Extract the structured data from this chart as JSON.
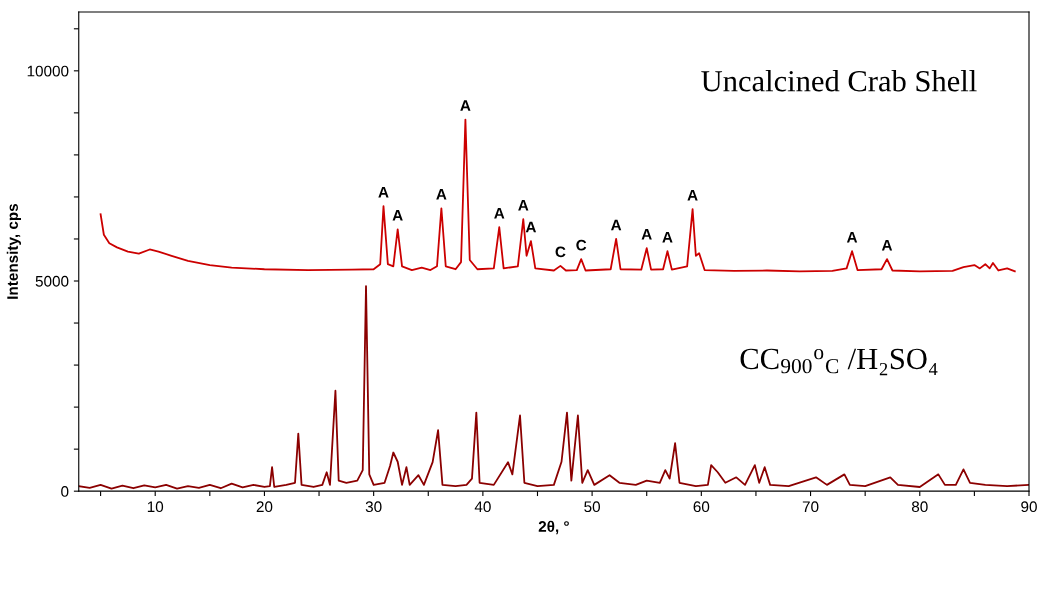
{
  "chart_data": {
    "type": "line",
    "xlabel": "2θ, °",
    "ylabel": "Intensity, cps",
    "xlim": [
      3,
      90
    ],
    "ylim": [
      0,
      11400
    ],
    "xticks": [
      {
        "value": 5,
        "label": null
      },
      10,
      {
        "value": 15,
        "label": null
      },
      20,
      {
        "value": 25,
        "label": null
      },
      30,
      {
        "value": 35,
        "label": null
      },
      40,
      {
        "value": 45,
        "label": null
      },
      50,
      {
        "value": 55,
        "label": null
      },
      60,
      {
        "value": 65,
        "label": null
      },
      70,
      {
        "value": 75,
        "label": null
      },
      80,
      {
        "value": 85,
        "label": null
      },
      90
    ],
    "yticks": [
      0,
      {
        "value": 1000,
        "label": null
      },
      {
        "value": 2000,
        "label": null
      },
      {
        "value": 3000,
        "label": null
      },
      {
        "value": 4000,
        "label": null
      },
      5000,
      {
        "value": 6000,
        "label": null
      },
      {
        "value": 7000,
        "label": null
      },
      {
        "value": 8000,
        "label": null
      },
      {
        "value": 9000,
        "label": null
      },
      10000,
      {
        "value": 11000,
        "label": null
      }
    ],
    "grid": false,
    "marker": "none",
    "line_style": "solid",
    "series": [
      {
        "color": "#cc0000",
        "x": [
          5.0,
          5.3,
          5.8,
          6.5,
          7.5,
          8.5,
          9.5,
          10.3,
          11.5,
          13,
          15,
          17,
          20,
          24,
          28,
          30.0,
          30.6,
          30.9,
          31.3,
          31.8,
          32.2,
          32.6,
          33.5,
          34.4,
          35.2,
          35.8,
          36.2,
          36.6,
          37.5,
          38.0,
          38.4,
          38.8,
          39.5,
          41.0,
          41.5,
          41.9,
          43.2,
          43.7,
          44.0,
          44.4,
          44.8,
          46.5,
          47.1,
          47.6,
          48.6,
          49.0,
          49.4,
          51.7,
          52.2,
          52.6,
          54.5,
          55.0,
          55.4,
          56.5,
          56.9,
          57.3,
          58.7,
          59.2,
          59.5,
          59.8,
          60.3,
          63,
          66,
          69,
          72,
          73.3,
          73.8,
          74.3,
          76.5,
          77.0,
          77.5,
          80,
          83,
          84,
          85.0,
          85.5,
          86.0,
          86.4,
          86.7,
          87.2,
          88.0,
          88.7
        ],
        "values": [
          6590,
          6100,
          5900,
          5800,
          5700,
          5650,
          5750,
          5700,
          5600,
          5480,
          5380,
          5320,
          5280,
          5260,
          5270,
          5280,
          5400,
          6780,
          5400,
          5350,
          6230,
          5350,
          5260,
          5320,
          5260,
          5350,
          6730,
          5350,
          5280,
          5450,
          8840,
          5500,
          5280,
          5300,
          6280,
          5300,
          5350,
          6470,
          5600,
          5950,
          5300,
          5250,
          5360,
          5250,
          5260,
          5520,
          5250,
          5280,
          6000,
          5280,
          5270,
          5780,
          5270,
          5280,
          5710,
          5270,
          5350,
          6710,
          5600,
          5660,
          5260,
          5240,
          5250,
          5230,
          5240,
          5300,
          5710,
          5260,
          5280,
          5520,
          5250,
          5230,
          5240,
          5330,
          5380,
          5300,
          5400,
          5300,
          5430,
          5250,
          5300,
          5230
        ]
      },
      {
        "color": "#8b0000",
        "x": [
          3.0,
          4,
          5,
          6,
          7,
          8,
          9,
          10,
          11,
          12,
          13,
          14,
          15,
          16,
          17,
          18,
          19,
          20,
          20.5,
          20.7,
          20.9,
          22,
          22.8,
          23.1,
          23.4,
          24.5,
          25.3,
          25.7,
          26.0,
          26.5,
          26.8,
          27.5,
          28.5,
          29.0,
          29.3,
          29.6,
          30.0,
          31.0,
          31.5,
          31.8,
          32.2,
          32.6,
          33.0,
          33.3,
          34.1,
          34.6,
          35.4,
          35.9,
          36.3,
          37.5,
          38.5,
          39.0,
          39.4,
          39.7,
          41,
          42.3,
          42.7,
          43.4,
          43.8,
          45,
          46.5,
          47.2,
          47.7,
          48.1,
          48.7,
          49.1,
          49.6,
          50.2,
          51.6,
          52.5,
          54,
          55,
          56.2,
          56.7,
          57.1,
          57.6,
          58,
          59.5,
          60.6,
          60.9,
          61.5,
          62.2,
          63.2,
          64,
          64.9,
          65.3,
          65.8,
          66.3,
          68,
          70.5,
          71.5,
          73.1,
          73.6,
          75,
          77.3,
          78,
          80,
          81.7,
          82.3,
          83.3,
          84.0,
          84.6,
          86,
          88,
          90
        ],
        "values": [
          120,
          80,
          150,
          60,
          130,
          70,
          140,
          90,
          150,
          60,
          120,
          80,
          150,
          70,
          180,
          90,
          150,
          100,
          120,
          570,
          100,
          150,
          200,
          1370,
          150,
          100,
          150,
          450,
          150,
          2390,
          250,
          200,
          250,
          500,
          4880,
          400,
          150,
          200,
          600,
          920,
          700,
          150,
          570,
          150,
          380,
          150,
          690,
          1450,
          150,
          120,
          150,
          300,
          1870,
          200,
          150,
          690,
          400,
          1800,
          200,
          120,
          150,
          700,
          1870,
          250,
          1800,
          200,
          500,
          150,
          380,
          200,
          150,
          250,
          200,
          500,
          300,
          1140,
          200,
          120,
          150,
          620,
          450,
          200,
          330,
          150,
          620,
          200,
          570,
          150,
          120,
          330,
          150,
          400,
          150,
          120,
          330,
          150,
          100,
          400,
          150,
          150,
          520,
          200,
          150,
          120,
          150
        ]
      }
    ],
    "annotations": [
      "Uncalcined Crab Shell",
      "CC$_{900}$$^{o}$$_{C}$ /H₂SO₄",
      {
        "text": "A",
        "x": 30.9,
        "y": 6780
      },
      {
        "text": "A",
        "x": 32.2,
        "y": 6230
      },
      {
        "text": "A",
        "x": 36.2,
        "y": 6730
      },
      {
        "text": "A",
        "x": 38.4,
        "y": 8840
      },
      {
        "text": "A",
        "x": 41.5,
        "y": 6280
      },
      {
        "text": "A",
        "x": 43.7,
        "y": 6470
      },
      {
        "text": "A",
        "x": 44.4,
        "y": 5950
      },
      {
        "text": "C",
        "x": 47.1,
        "y": 5360
      },
      {
        "text": "C",
        "x": 49.0,
        "y": 5520
      },
      {
        "text": "A",
        "x": 52.2,
        "y": 6000
      },
      {
        "text": "A",
        "x": 55.0,
        "y": 5780
      },
      {
        "text": "A",
        "x": 56.9,
        "y": 5710
      },
      {
        "text": "A",
        "x": 59.2,
        "y": 6710
      },
      {
        "text": "A",
        "x": 73.8,
        "y": 5710
      },
      {
        "text": "A",
        "x": 77.0,
        "y": 5520
      }
    ]
  }
}
